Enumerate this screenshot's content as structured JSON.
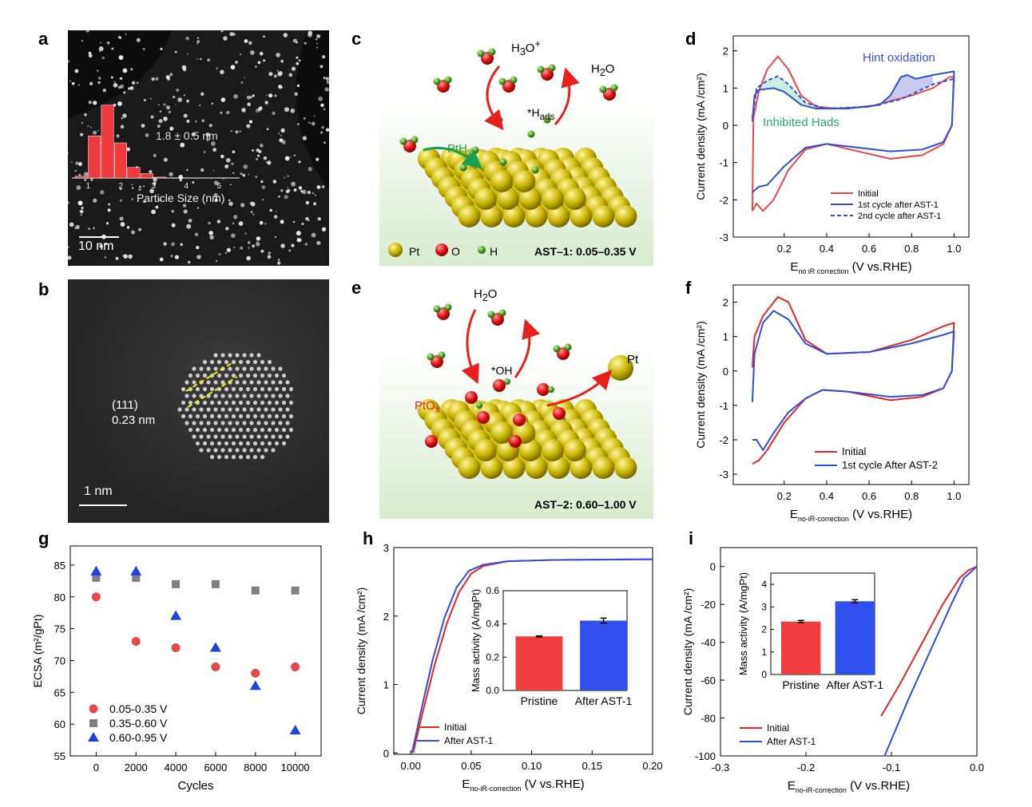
{
  "panel_labels": [
    "a",
    "b",
    "c",
    "d",
    "e",
    "f",
    "g",
    "h",
    "i"
  ],
  "panel_a": {
    "inset_stat": "1.8 ± 0.5 nm",
    "inset_xlabel": "Particle Size (nm)",
    "inset_ticks": [
      "1",
      "2",
      "3",
      "4",
      "5"
    ],
    "histogram": {
      "bin_centers": [
        0.8,
        1.2,
        1.6,
        2.0,
        2.4,
        2.8,
        3.2,
        3.6
      ],
      "relative_counts": [
        0.02,
        0.48,
        0.83,
        0.4,
        0.12,
        0.05,
        0.01,
        0
      ]
    },
    "scale_bar": "10 nm"
  },
  "panel_b": {
    "plane": "(111)",
    "spacing": "0.23 nm",
    "scale_bar": "1 nm"
  },
  "panel_c": {
    "h3o": "H3O+",
    "h2o": "H2O",
    "hads": "*Hads",
    "pthx": "PtHx",
    "legend": [
      "Pt",
      "O",
      "H"
    ],
    "condition": "AST–1: 0.05–0.35 V"
  },
  "panel_e": {
    "h2o": "H2O",
    "oh": "*OH",
    "ptox": "PtOx",
    "pt": "Pt",
    "condition": "AST–2: 0.60–1.00 V"
  },
  "colors": {
    "red": "#e8484c",
    "blue": "#2e4fd6",
    "gray": "#808080",
    "green": "#2faa6a",
    "gold": "#d8c400"
  },
  "chart_data": [
    {
      "id": "d",
      "type": "line",
      "ylabel": "Current density (mA /cm²)",
      "xlabel_main": "E",
      "xlabel_sub": "no iR correction",
      "xlabel_tail": "(V vs.RHE)",
      "xlim": [
        -0.04,
        1.07
      ],
      "ylim": [
        -3,
        2.4
      ],
      "xticks": [
        0.2,
        0.4,
        0.6,
        0.8,
        1.0
      ],
      "xticklabels": [
        "0.2",
        "0.4",
        "0.6",
        "0.8",
        "1.0"
      ],
      "yticks": [
        -3,
        -2,
        -1,
        0,
        1,
        2
      ],
      "yticklabels": [
        "-3",
        "-2",
        "-1",
        "0",
        "1",
        "2"
      ],
      "annotations": [
        {
          "text": "Hint oxidation",
          "color": "#3b4fd6"
        },
        {
          "text": "Inhibited Hads",
          "color": "#2faa6a"
        }
      ],
      "series": [
        {
          "name": "Initial",
          "color": "#e8484c",
          "dash": false,
          "points": [
            [
              0.05,
              -2.3
            ],
            [
              0.055,
              0.2
            ],
            [
              0.08,
              0.9
            ],
            [
              0.12,
              1.5
            ],
            [
              0.17,
              1.85
            ],
            [
              0.22,
              1.5
            ],
            [
              0.28,
              0.8
            ],
            [
              0.35,
              0.5
            ],
            [
              0.45,
              0.45
            ],
            [
              0.6,
              0.5
            ],
            [
              0.8,
              0.8
            ],
            [
              0.9,
              1.0
            ],
            [
              0.98,
              1.3
            ],
            [
              1.0,
              1.3
            ],
            [
              0.99,
              0.0
            ],
            [
              0.95,
              -0.5
            ],
            [
              0.85,
              -0.8
            ],
            [
              0.7,
              -0.9
            ],
            [
              0.55,
              -0.7
            ],
            [
              0.4,
              -0.5
            ],
            [
              0.3,
              -0.65
            ],
            [
              0.22,
              -1.2
            ],
            [
              0.15,
              -2.0
            ],
            [
              0.1,
              -2.3
            ],
            [
              0.07,
              -2.1
            ],
            [
              0.05,
              -2.3
            ]
          ]
        },
        {
          "name": "1st cycle after AST-1",
          "color": "#2e4fd6",
          "dash": false,
          "points": [
            [
              0.05,
              0.1
            ],
            [
              0.06,
              0.8
            ],
            [
              0.08,
              0.95
            ],
            [
              0.15,
              1.0
            ],
            [
              0.2,
              0.9
            ],
            [
              0.28,
              0.55
            ],
            [
              0.35,
              0.45
            ],
            [
              0.5,
              0.45
            ],
            [
              0.65,
              0.55
            ],
            [
              0.7,
              0.8
            ],
            [
              0.75,
              1.3
            ],
            [
              0.78,
              1.35
            ],
            [
              0.82,
              1.25
            ],
            [
              0.9,
              1.35
            ],
            [
              1.0,
              1.45
            ],
            [
              0.99,
              0
            ],
            [
              0.95,
              -0.45
            ],
            [
              0.85,
              -0.65
            ],
            [
              0.7,
              -0.7
            ],
            [
              0.55,
              -0.6
            ],
            [
              0.4,
              -0.5
            ],
            [
              0.3,
              -0.6
            ],
            [
              0.2,
              -1.1
            ],
            [
              0.12,
              -1.6
            ],
            [
              0.08,
              -1.65
            ],
            [
              0.05,
              -1.8
            ]
          ]
        },
        {
          "name": "2nd cycle after AST-1",
          "color": "#2e4fd6",
          "dash": true,
          "points": [
            [
              0.05,
              0.2
            ],
            [
              0.07,
              1.0
            ],
            [
              0.12,
              1.2
            ],
            [
              0.17,
              1.32
            ],
            [
              0.22,
              1.1
            ],
            [
              0.3,
              0.6
            ],
            [
              0.4,
              0.45
            ],
            [
              0.6,
              0.5
            ],
            [
              0.75,
              0.7
            ],
            [
              0.9,
              1.1
            ],
            [
              1.0,
              1.25
            ]
          ]
        }
      ]
    },
    {
      "id": "f",
      "type": "line",
      "ylabel": "Current density (mA /cm²)",
      "xlabel_main": "E",
      "xlabel_sub": "no-iR-correction",
      "xlabel_tail": "(V vs.RHE)",
      "xlim": [
        -0.04,
        1.07
      ],
      "ylim": [
        -3.3,
        2.5
      ],
      "xticks": [
        0.2,
        0.4,
        0.6,
        0.8,
        1.0
      ],
      "xticklabels": [
        "0.2",
        "0.4",
        "0.6",
        "0.8",
        "1.0"
      ],
      "yticks": [
        -3,
        -2,
        -1,
        0,
        1,
        2
      ],
      "yticklabels": [
        "-3",
        "-2",
        "-1",
        "0",
        "1",
        "2"
      ],
      "series": [
        {
          "name": "Initial",
          "color": "#e02828",
          "dash": false,
          "points": [
            [
              0.05,
              0.1
            ],
            [
              0.06,
              1.0
            ],
            [
              0.1,
              1.6
            ],
            [
              0.17,
              2.15
            ],
            [
              0.22,
              2.0
            ],
            [
              0.3,
              0.9
            ],
            [
              0.4,
              0.5
            ],
            [
              0.6,
              0.55
            ],
            [
              0.8,
              0.9
            ],
            [
              0.95,
              1.3
            ],
            [
              1.0,
              1.4
            ],
            [
              0.99,
              0
            ],
            [
              0.95,
              -0.5
            ],
            [
              0.85,
              -0.75
            ],
            [
              0.7,
              -0.85
            ],
            [
              0.5,
              -0.6
            ],
            [
              0.38,
              -0.55
            ],
            [
              0.3,
              -0.8
            ],
            [
              0.2,
              -1.5
            ],
            [
              0.12,
              -2.3
            ],
            [
              0.08,
              -2.6
            ],
            [
              0.05,
              -2.7
            ]
          ]
        },
        {
          "name": "1st cycle After AST-2",
          "color": "#2e4fd6",
          "dash": false,
          "points": [
            [
              0.05,
              -0.9
            ],
            [
              0.06,
              0.5
            ],
            [
              0.1,
              1.4
            ],
            [
              0.15,
              1.75
            ],
            [
              0.22,
              1.5
            ],
            [
              0.3,
              0.8
            ],
            [
              0.4,
              0.5
            ],
            [
              0.6,
              0.55
            ],
            [
              0.8,
              0.8
            ],
            [
              0.95,
              1.05
            ],
            [
              1.0,
              1.15
            ],
            [
              0.99,
              0
            ],
            [
              0.95,
              -0.5
            ],
            [
              0.85,
              -0.7
            ],
            [
              0.7,
              -0.75
            ],
            [
              0.5,
              -0.6
            ],
            [
              0.38,
              -0.55
            ],
            [
              0.3,
              -0.8
            ],
            [
              0.22,
              -1.2
            ],
            [
              0.15,
              -1.8
            ],
            [
              0.1,
              -2.3
            ],
            [
              0.07,
              -2.0
            ],
            [
              0.05,
              -2.0
            ]
          ]
        }
      ]
    },
    {
      "id": "g",
      "type": "scatter",
      "ylabel": "ECSA (m²/gPt)",
      "xlabel": "Cycles",
      "xlim": [
        -1300,
        11300
      ],
      "ylim": [
        55,
        88
      ],
      "xticks": [
        0,
        2000,
        4000,
        6000,
        8000,
        10000
      ],
      "xticklabels": [
        "0",
        "2000",
        "4000",
        "6000",
        "8000",
        "10000"
      ],
      "yticks": [
        55,
        60,
        65,
        70,
        75,
        80,
        85
      ],
      "yticklabels": [
        "55",
        "60",
        "65",
        "70",
        "75",
        "80",
        "85"
      ],
      "series": [
        {
          "name": "0.05-0.35 V",
          "color": "#e8484c",
          "marker": "circle",
          "x": [
            0,
            2000,
            4000,
            6000,
            8000,
            10000
          ],
          "y": [
            80,
            73,
            72,
            69,
            68,
            69
          ]
        },
        {
          "name": "0.35-0.60 V",
          "color": "#808080",
          "marker": "square",
          "x": [
            0,
            2000,
            4000,
            6000,
            8000,
            10000
          ],
          "y": [
            83,
            83,
            82,
            82,
            81,
            81
          ]
        },
        {
          "name": "0.60-0.95 V",
          "color": "#2040e0",
          "marker": "triangle",
          "x": [
            0,
            2000,
            4000,
            6000,
            8000,
            10000
          ],
          "y": [
            84,
            84,
            77,
            72,
            66,
            59
          ]
        }
      ]
    },
    {
      "id": "h",
      "type": "line",
      "ylabel": "Current density (mA /cm²)",
      "xlabel_main": "E",
      "xlabel_sub": "no-iR-correction",
      "xlabel_tail": "(V vs.RHE)",
      "xlim": [
        -0.014,
        0.2
      ],
      "ylim": [
        -0.02,
        3
      ],
      "xticks": [
        0,
        0.05,
        0.1,
        0.15,
        0.2
      ],
      "xticklabels": [
        "0.00",
        "0.05",
        "0.10",
        "0.15",
        "0.20"
      ],
      "yticks": [
        0,
        1,
        2,
        3
      ],
      "yticklabels": [
        "0",
        "1",
        "2",
        "3"
      ],
      "series": [
        {
          "name": "Initial",
          "color": "#e02828",
          "dash": false,
          "points": [
            [
              0.002,
              0
            ],
            [
              0.01,
              0.6
            ],
            [
              0.02,
              1.3
            ],
            [
              0.03,
              1.9
            ],
            [
              0.04,
              2.35
            ],
            [
              0.05,
              2.62
            ],
            [
              0.06,
              2.73
            ],
            [
              0.08,
              2.8
            ],
            [
              0.12,
              2.82
            ],
            [
              0.2,
              2.83
            ]
          ]
        },
        {
          "name": "After AST-1",
          "color": "#2e4fd6",
          "dash": false,
          "points": [
            [
              0.001,
              0
            ],
            [
              0.009,
              0.65
            ],
            [
              0.018,
              1.35
            ],
            [
              0.028,
              1.98
            ],
            [
              0.038,
              2.42
            ],
            [
              0.048,
              2.66
            ],
            [
              0.06,
              2.75
            ],
            [
              0.08,
              2.8
            ],
            [
              0.12,
              2.82
            ],
            [
              0.2,
              2.83
            ]
          ]
        }
      ],
      "inset": {
        "type": "bar",
        "ylabel": "Mass activity (A/mgPt)",
        "categories": [
          "Pristine",
          "After AST-1"
        ],
        "values": [
          0.325,
          0.42
        ],
        "errors": [
          0.003,
          0.015
        ],
        "colors": [
          "#f03c3c",
          "#3050f0"
        ],
        "ylim": [
          0,
          0.6
        ],
        "yticks": [
          0,
          0.2,
          0.4,
          0.6
        ],
        "yticklabels": [
          "0.0",
          "0.2",
          "0.4",
          "0.6"
        ]
      }
    },
    {
      "id": "i",
      "type": "line",
      "ylabel": "Current density (mA /cm²)",
      "xlabel_main": "E",
      "xlabel_sub": "no-iR-correction",
      "xlabel_tail": "(V vs.RHE)",
      "xlim": [
        -0.3,
        0
      ],
      "ylim": [
        -100,
        10
      ],
      "xticks": [
        -0.3,
        -0.2,
        -0.1,
        0
      ],
      "xticklabels": [
        "-0.3",
        "-0.2",
        "-0.1",
        "0.0"
      ],
      "yticks": [
        -100,
        -80,
        -60,
        -40,
        -20,
        0
      ],
      "yticklabels": [
        "-100",
        "-80",
        "-60",
        "-40",
        "-20",
        "0"
      ],
      "series": [
        {
          "name": "Initial",
          "color": "#e02828",
          "dash": false,
          "points": [
            [
              -0.112,
              -79
            ],
            [
              -0.09,
              -62
            ],
            [
              -0.06,
              -37
            ],
            [
              -0.04,
              -20
            ],
            [
              -0.02,
              -6
            ],
            [
              -0.01,
              -2
            ],
            [
              0,
              0
            ]
          ]
        },
        {
          "name": "After AST-1",
          "color": "#2e4fd6",
          "dash": false,
          "points": [
            [
              -0.108,
              -100
            ],
            [
              -0.08,
              -70
            ],
            [
              -0.05,
              -40
            ],
            [
              -0.03,
              -20
            ],
            [
              -0.015,
              -6
            ],
            [
              0,
              0
            ]
          ]
        }
      ],
      "inset": {
        "type": "bar",
        "ylabel": "Mass activity (A/mgPt)",
        "categories": [
          "Pristine",
          "After AST-1"
        ],
        "values": [
          2.35,
          3.25
        ],
        "errors": [
          0.05,
          0.07
        ],
        "colors": [
          "#f03c3c",
          "#3050f0"
        ],
        "ylim": [
          0,
          4.5
        ],
        "yticks": [
          0,
          1,
          2,
          3,
          4
        ],
        "yticklabels": [
          "0",
          "1",
          "2",
          "3",
          "4"
        ]
      }
    }
  ]
}
